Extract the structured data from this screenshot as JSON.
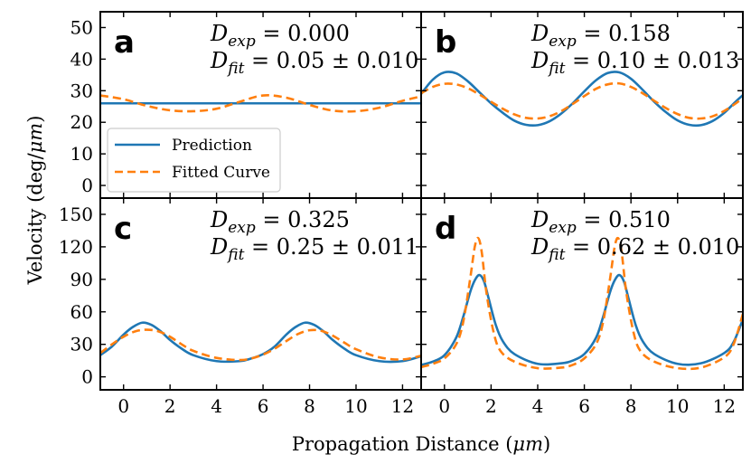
{
  "figure": {
    "xlabel": "Propagation Distance (",
    "xlabel_unit": "μm",
    "xlabel_close": ")",
    "ylabel": "Velocity (deg/",
    "ylabel_unit": "μm",
    "ylabel_close": ")"
  },
  "legend": {
    "prediction_label": "Prediction",
    "fitted_label": "Fitted Curve"
  },
  "colors": {
    "prediction": "#1f77b4",
    "fitted": "#ff7f0e"
  },
  "chart_data": [
    {
      "panel": "a",
      "type": "line",
      "xlim": [
        -1,
        12.8
      ],
      "ylim": [
        -4,
        55
      ],
      "yticks": [
        0,
        10,
        20,
        30,
        40,
        50
      ],
      "xticks": [
        0,
        2,
        4,
        6,
        8,
        10,
        12
      ],
      "d_exp_label": "D",
      "d_exp_sub": "exp",
      "d_exp_value": " = 0.000",
      "d_fit_label": "D",
      "d_fit_sub": "fit",
      "d_fit_value": " = 0.05 ± 0.010",
      "series": [
        {
          "name": "Prediction",
          "x": [
            -1,
            12.8
          ],
          "y": [
            26,
            26
          ]
        },
        {
          "name": "Fitted Curve",
          "x": [
            -1,
            0,
            1,
            2,
            3,
            4,
            5,
            6,
            7,
            8,
            9,
            10,
            11,
            12,
            12.8
          ],
          "y": [
            28.5,
            27.3,
            25.2,
            23.8,
            23.5,
            24.3,
            26.5,
            28.5,
            27.8,
            25.5,
            23.7,
            23.5,
            24.6,
            26.8,
            28.2
          ]
        }
      ]
    },
    {
      "panel": "b",
      "type": "line",
      "xlim": [
        -1,
        12.8
      ],
      "ylim": [
        -4,
        55
      ],
      "yticks": [
        0,
        10,
        20,
        30,
        40,
        50
      ],
      "xticks": [
        0,
        2,
        4,
        6,
        8,
        10,
        12
      ],
      "d_exp_label": "D",
      "d_exp_sub": "exp",
      "d_exp_value": " = 0.158",
      "d_fit_label": "D",
      "d_fit_sub": "fit",
      "d_fit_value": " = 0.10 ± 0.013",
      "series": [
        {
          "name": "Prediction",
          "x": [
            -1,
            -0.5,
            0,
            0.5,
            1,
            1.5,
            2,
            2.5,
            3,
            3.5,
            4,
            4.5,
            5,
            5.5,
            6,
            6.5,
            7,
            7.5,
            8,
            8.5,
            9,
            9.5,
            10,
            10.5,
            11,
            11.5,
            12,
            12.5,
            12.8
          ],
          "y": [
            29,
            33.5,
            35.8,
            35.5,
            33,
            29.5,
            26,
            23,
            20.5,
            19.2,
            19.1,
            20.3,
            22.7,
            26,
            29.8,
            33.3,
            35.6,
            35.8,
            33.8,
            30.3,
            26.5,
            23.2,
            20.6,
            19.2,
            19.1,
            20.4,
            23,
            26.6,
            28.6
          ]
        },
        {
          "name": "Fitted Curve",
          "x": [
            -1,
            -0.5,
            0,
            0.5,
            1,
            1.5,
            2,
            2.5,
            3,
            3.5,
            4,
            4.5,
            5,
            5.5,
            6,
            6.5,
            7,
            7.5,
            8,
            8.5,
            9,
            9.5,
            10,
            10.5,
            11,
            11.5,
            12,
            12.5,
            12.8
          ],
          "y": [
            29.2,
            31.2,
            32.2,
            32,
            30.8,
            28.8,
            26.5,
            24.3,
            22.5,
            21.4,
            21.2,
            21.9,
            23.5,
            25.8,
            28.3,
            30.6,
            32,
            32.3,
            31.2,
            29.2,
            26.8,
            24.5,
            22.6,
            21.4,
            21.2,
            21.9,
            23.6,
            26,
            27.8
          ]
        }
      ]
    },
    {
      "panel": "c",
      "type": "line",
      "xlim": [
        -1,
        12.8
      ],
      "ylim": [
        -12,
        165
      ],
      "yticks": [
        0,
        30,
        60,
        90,
        120,
        150
      ],
      "xticks": [
        0,
        2,
        4,
        6,
        8,
        10,
        12
      ],
      "d_exp_label": "D",
      "d_exp_sub": "exp",
      "d_exp_value": " = 0.325",
      "d_fit_label": "D",
      "d_fit_sub": "fit",
      "d_fit_value": " = 0.25 ± 0.011",
      "series": [
        {
          "name": "Prediction",
          "x": [
            -1,
            -0.5,
            0,
            0.4,
            0.8,
            1.2,
            1.6,
            2,
            2.5,
            3,
            4,
            5,
            5.5,
            6,
            6.5,
            7,
            7.4,
            7.8,
            8.2,
            8.6,
            9,
            9.5,
            10,
            11,
            12,
            12.8
          ],
          "y": [
            20,
            28,
            39,
            46,
            50,
            48,
            42,
            34,
            26,
            20,
            14.5,
            14.5,
            17,
            21,
            28,
            39,
            46,
            50,
            48,
            42,
            34,
            26,
            20,
            14.5,
            14.5,
            19
          ]
        },
        {
          "name": "Fitted Curve",
          "x": [
            -1,
            -0.5,
            0,
            0.5,
            1,
            1.5,
            2,
            2.5,
            3,
            4,
            5,
            5.5,
            6,
            6.5,
            7,
            7.5,
            8,
            8.5,
            9,
            9.5,
            10,
            11,
            12,
            12.8
          ],
          "y": [
            22,
            30,
            37,
            42,
            43.5,
            42,
            37,
            30,
            24,
            17.5,
            15.5,
            17,
            20.5,
            26,
            33,
            39.5,
            43,
            42.5,
            38,
            31.5,
            25.5,
            18,
            16,
            19.5
          ]
        }
      ]
    },
    {
      "panel": "d",
      "type": "line",
      "xlim": [
        -1,
        12.8
      ],
      "ylim": [
        -12,
        165
      ],
      "yticks": [
        0,
        30,
        60,
        90,
        120,
        150
      ],
      "xticks": [
        0,
        2,
        4,
        6,
        8,
        10,
        12
      ],
      "d_exp_label": "D",
      "d_exp_sub": "exp",
      "d_exp_value": " = 0.510",
      "d_fit_label": "D",
      "d_fit_sub": "fit",
      "d_fit_value": " = 0.62 ± 0.010",
      "series": [
        {
          "name": "Prediction",
          "x": [
            -1,
            -0.5,
            0,
            0.5,
            0.8,
            1.1,
            1.3,
            1.5,
            1.7,
            1.9,
            2.2,
            2.5,
            3,
            4,
            5,
            5.5,
            6,
            6.5,
            6.8,
            7.1,
            7.3,
            7.5,
            7.7,
            7.9,
            8.2,
            8.5,
            9,
            10,
            11,
            12,
            12.4,
            12.8
          ],
          "y": [
            11,
            14,
            20,
            36,
            55,
            78,
            89,
            94,
            88,
            72,
            48,
            33,
            21,
            12,
            12.5,
            15,
            21,
            36,
            55,
            78,
            89,
            94,
            88,
            72,
            48,
            33,
            21,
            12,
            12.5,
            22,
            32,
            53
          ]
        },
        {
          "name": "Fitted Curve",
          "x": [
            -1,
            -0.5,
            0,
            0.5,
            0.8,
            1.1,
            1.3,
            1.45,
            1.6,
            1.8,
            2.1,
            2.4,
            3,
            4,
            5,
            5.5,
            6,
            6.5,
            6.8,
            7.1,
            7.3,
            7.45,
            7.6,
            7.8,
            8.1,
            8.4,
            9,
            10,
            11,
            12,
            12.4,
            12.8
          ],
          "y": [
            9,
            12,
            17,
            30,
            50,
            90,
            120,
            128,
            115,
            78,
            42,
            24,
            14,
            8,
            8.5,
            11,
            17,
            30,
            50,
            90,
            120,
            128,
            115,
            78,
            42,
            24,
            14,
            8,
            8.5,
            18,
            30,
            58
          ]
        }
      ]
    }
  ]
}
